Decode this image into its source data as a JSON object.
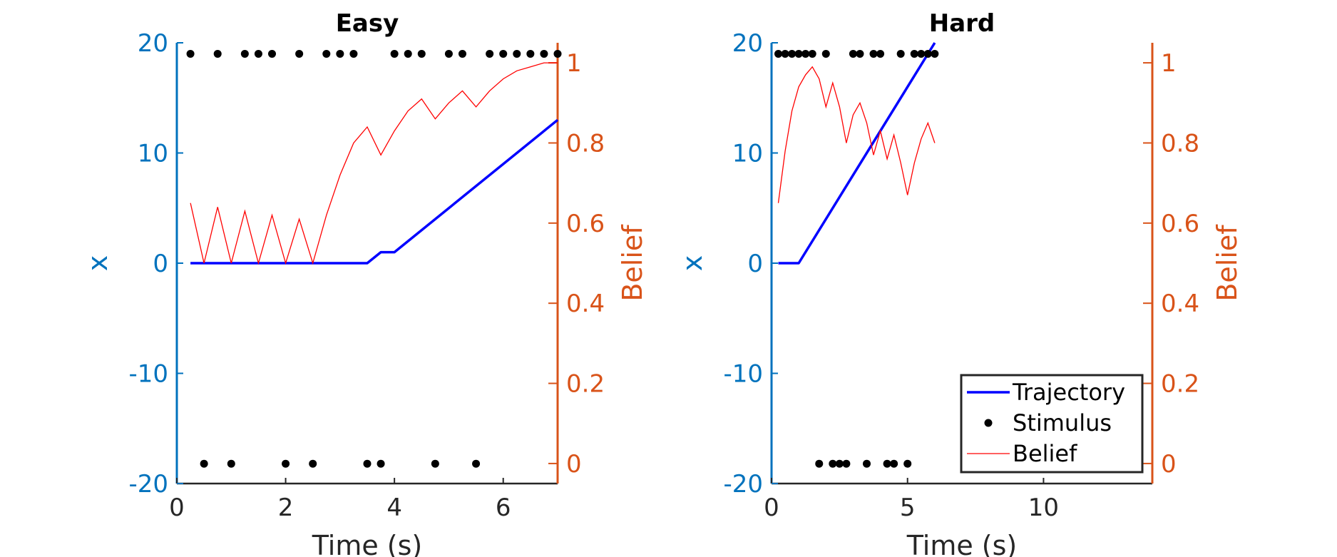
{
  "colors": {
    "left_axis": "#0072BD",
    "right_axis": "#D95319",
    "trajectory": "#0000FF",
    "stimulus": "#000000",
    "belief": "#FF0000",
    "bottom_axis": "#262626"
  },
  "chart_data": [
    {
      "type": "line",
      "title": "Easy",
      "xlabel": "Time (s)",
      "ylabel_left": "x",
      "ylabel_right": "Belief",
      "xlim": [
        0,
        7
      ],
      "ylim_left": [
        -20,
        20
      ],
      "ylim_right": [
        -0.05,
        1.05
      ],
      "xticks": [
        0,
        2,
        4,
        6
      ],
      "xtick_labels": [
        "0",
        "2",
        "4",
        "6"
      ],
      "yticks_left": [
        -20,
        -10,
        0,
        10,
        20
      ],
      "ytick_labels_left": [
        "-20",
        "-10",
        "0",
        "10",
        "20"
      ],
      "yticks_right": [
        0,
        0.2,
        0.4,
        0.6,
        0.8,
        1
      ],
      "ytick_labels_right": [
        "0",
        "0.2",
        "0.4",
        "0.6",
        "0.8",
        "1"
      ],
      "grid": false,
      "series": [
        {
          "name": "Trajectory",
          "axis": "left",
          "x": [
            0.25,
            3.5,
            3.75,
            4.0,
            7.0
          ],
          "y": [
            0,
            0,
            1,
            1,
            13
          ]
        },
        {
          "name": "Stimulus",
          "axis": "left",
          "x": [
            0.25,
            0.75,
            1.25,
            1.5,
            1.75,
            2.25,
            2.75,
            3.0,
            3.25,
            4.0,
            4.25,
            4.5,
            5.0,
            5.25,
            5.75,
            6.0,
            6.25,
            6.5,
            6.75,
            7.0,
            0.5,
            1.0,
            2.0,
            2.5,
            3.5,
            3.75,
            4.75,
            5.5
          ],
          "y": [
            19,
            19,
            19,
            19,
            19,
            19,
            19,
            19,
            19,
            19,
            19,
            19,
            19,
            19,
            19,
            19,
            19,
            19,
            19,
            19,
            -18.2,
            -18.2,
            -18.2,
            -18.2,
            -18.2,
            -18.2,
            -18.2,
            -18.2
          ]
        },
        {
          "name": "Belief",
          "axis": "right",
          "x": [
            0.25,
            0.5,
            0.75,
            1.0,
            1.25,
            1.5,
            1.75,
            2.0,
            2.25,
            2.5,
            2.75,
            3.0,
            3.25,
            3.5,
            3.75,
            4.0,
            4.25,
            4.5,
            4.75,
            5.0,
            5.25,
            5.5,
            5.75,
            6.0,
            6.25,
            6.5,
            6.75,
            7.0
          ],
          "y": [
            0.65,
            0.5,
            0.64,
            0.5,
            0.63,
            0.5,
            0.62,
            0.5,
            0.61,
            0.5,
            0.62,
            0.72,
            0.8,
            0.84,
            0.77,
            0.83,
            0.88,
            0.91,
            0.86,
            0.9,
            0.93,
            0.89,
            0.93,
            0.96,
            0.98,
            0.99,
            1.0,
            1.0
          ]
        }
      ]
    },
    {
      "type": "line",
      "title": "Hard",
      "xlabel": "Time (s)",
      "ylabel_left": "x",
      "ylabel_right": "Belief",
      "xlim": [
        0,
        14
      ],
      "ylim_left": [
        -20,
        20
      ],
      "ylim_right": [
        -0.05,
        1.05
      ],
      "xticks": [
        0,
        5,
        10
      ],
      "xtick_labels": [
        "0",
        "5",
        "10"
      ],
      "yticks_left": [
        -20,
        -10,
        0,
        10,
        20
      ],
      "ytick_labels_left": [
        "-20",
        "-10",
        "0",
        "10",
        "20"
      ],
      "yticks_right": [
        0,
        0.2,
        0.4,
        0.6,
        0.8,
        1
      ],
      "ytick_labels_right": [
        "0",
        "0.2",
        "0.4",
        "0.6",
        "0.8",
        "1"
      ],
      "grid": false,
      "legend_position": "bottom-right",
      "legend_entries": [
        "Trajectory",
        "Stimulus",
        "Belief"
      ],
      "series": [
        {
          "name": "Trajectory",
          "axis": "left",
          "x": [
            0.25,
            1.0,
            6.0
          ],
          "y": [
            0,
            0,
            20
          ]
        },
        {
          "name": "Stimulus",
          "axis": "left",
          "x": [
            0.25,
            0.5,
            0.75,
            1.0,
            1.25,
            1.5,
            2.0,
            3.0,
            3.25,
            3.75,
            4.0,
            4.75,
            5.25,
            5.5,
            5.75,
            6.0,
            1.75,
            2.25,
            2.5,
            2.75,
            3.5,
            4.25,
            4.5,
            5.0
          ],
          "y": [
            19,
            19,
            19,
            19,
            19,
            19,
            19,
            19,
            19,
            19,
            19,
            19,
            19,
            19,
            19,
            19,
            -18.2,
            -18.2,
            -18.2,
            -18.2,
            -18.2,
            -18.2,
            -18.2,
            -18.2
          ]
        },
        {
          "name": "Belief",
          "axis": "right",
          "x": [
            0.25,
            0.5,
            0.75,
            1.0,
            1.25,
            1.5,
            1.75,
            2.0,
            2.25,
            2.5,
            2.75,
            3.0,
            3.25,
            3.5,
            3.75,
            4.0,
            4.25,
            4.5,
            4.75,
            5.0,
            5.25,
            5.5,
            5.75,
            6.0
          ],
          "y": [
            0.65,
            0.78,
            0.88,
            0.94,
            0.97,
            0.99,
            0.96,
            0.89,
            0.95,
            0.89,
            0.8,
            0.87,
            0.9,
            0.85,
            0.77,
            0.83,
            0.76,
            0.82,
            0.75,
            0.67,
            0.75,
            0.81,
            0.85,
            0.8
          ]
        }
      ]
    }
  ]
}
